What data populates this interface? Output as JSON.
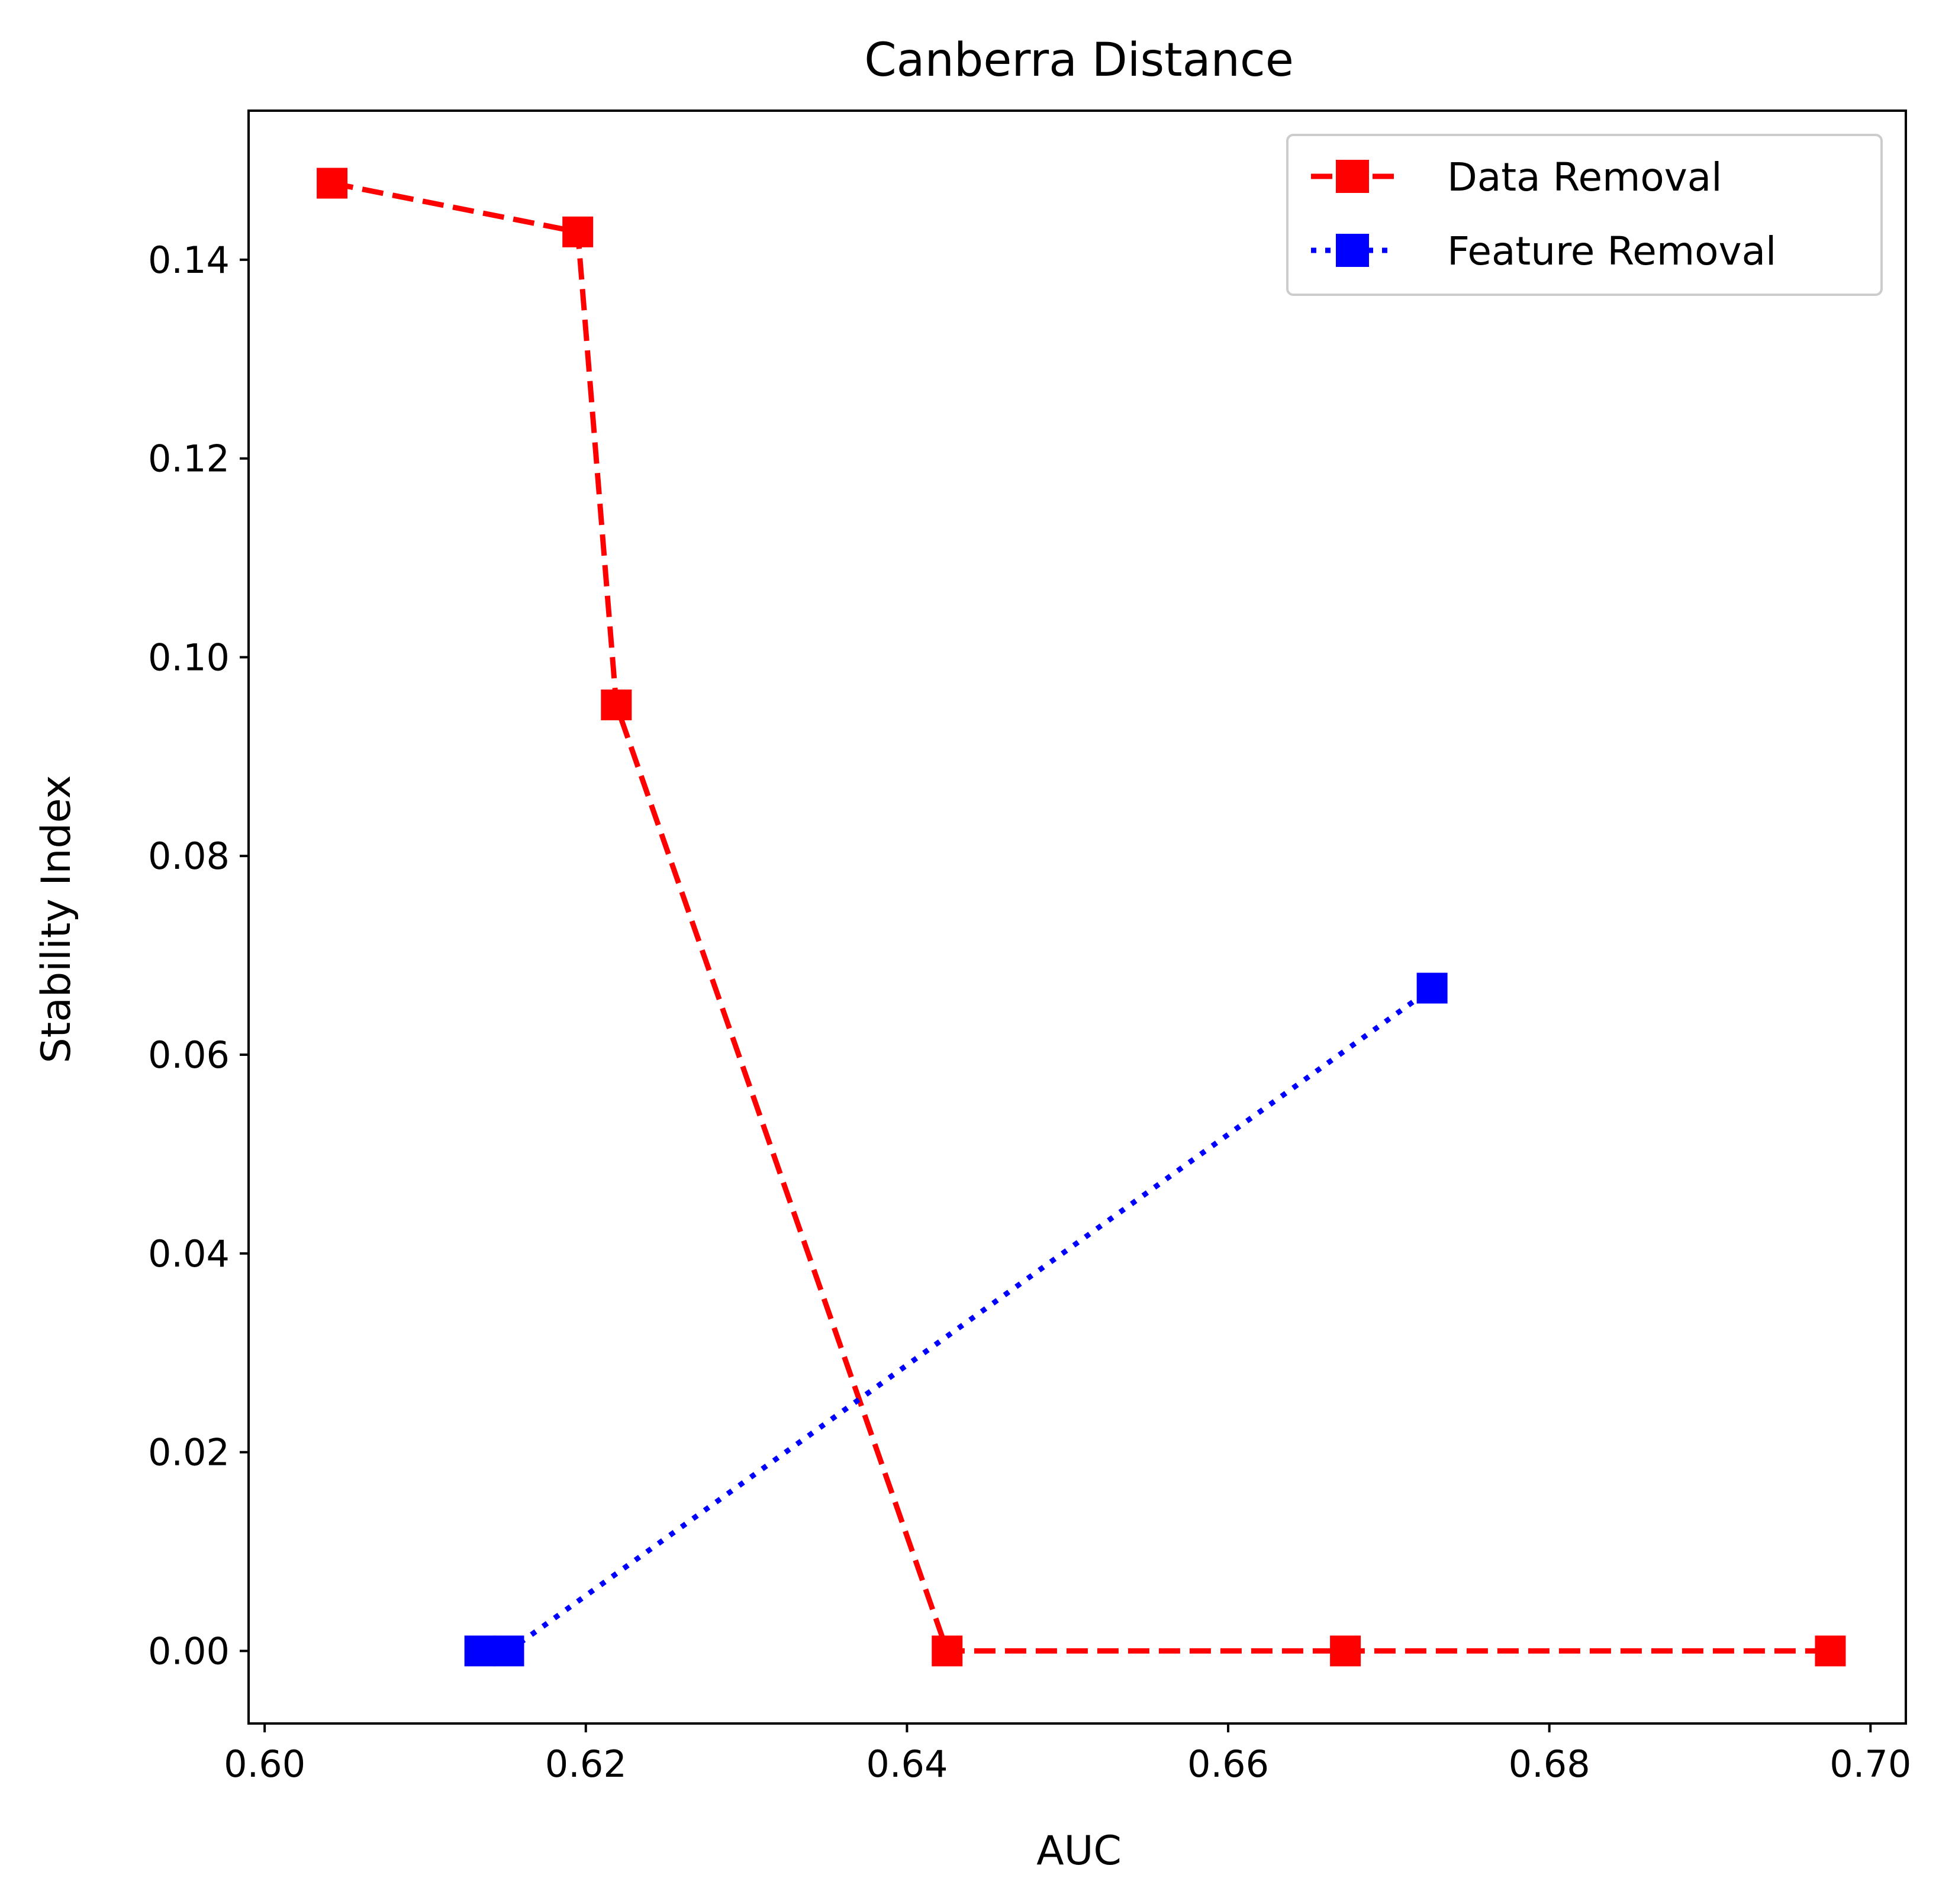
{
  "chart_data": {
    "type": "line",
    "title": "Canberra Distance",
    "xlabel": "AUC",
    "ylabel": "Stability Index",
    "xlim": [
      0.599,
      0.7022
    ],
    "ylim": [
      -0.0073,
      0.155
    ],
    "xticks": [
      0.6,
      0.62,
      0.64,
      0.66,
      0.68,
      0.7
    ],
    "xtick_labels": [
      "0.60",
      "0.62",
      "0.64",
      "0.66",
      "0.68",
      "0.70"
    ],
    "yticks": [
      0.0,
      0.02,
      0.04,
      0.06,
      0.08,
      0.1,
      0.12,
      0.14
    ],
    "ytick_labels": [
      "0.00",
      "0.02",
      "0.04",
      "0.06",
      "0.08",
      "0.10",
      "0.12",
      "0.14"
    ],
    "grid": false,
    "legend_position": "top-right",
    "series": [
      {
        "name": "Data Removal",
        "color": "#ff0000",
        "line_style": "dashed",
        "marker": "square",
        "x": [
          0.6042,
          0.6195,
          0.6219,
          0.6425,
          0.6673,
          0.6975
        ],
        "y": [
          0.1477,
          0.1428,
          0.0952,
          0.0,
          0.0,
          0.0
        ]
      },
      {
        "name": "Feature Removal",
        "color": "#0000ff",
        "line_style": "dotted",
        "marker": "square",
        "x": [
          0.6134,
          0.6152,
          0.6727
        ],
        "y": [
          0.0,
          0.0,
          0.0667
        ]
      }
    ]
  }
}
